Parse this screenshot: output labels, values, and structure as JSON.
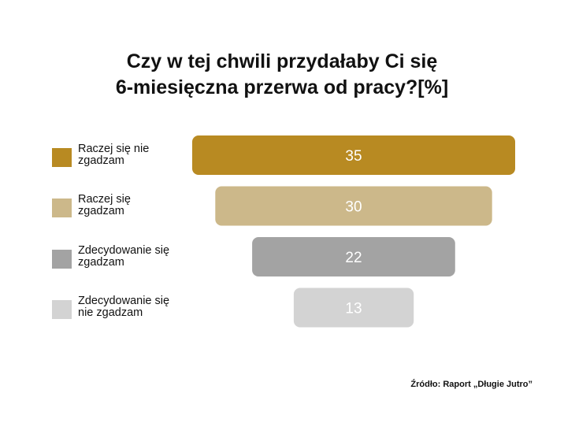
{
  "title_lines": [
    "Czy w tej chwili przydałaby Ci się",
    "6-miesięczna przerwa od pracy?[%]"
  ],
  "source": "Źródło: Raport „Długie Jutro”",
  "chart_data": {
    "type": "bar",
    "orientation": "horizontal",
    "layout": "funnel-centered",
    "title": "Czy w tej chwili przydałaby Ci się 6-miesięczna przerwa od pracy?[%]",
    "categories": [
      "Raczej się nie zgadzam",
      "Raczej się zgadzam",
      "Zdecydowanie się zgadzam",
      "Zdecydowanie się nie zgadzam"
    ],
    "category_lines": [
      [
        "Raczej się nie",
        "zgadzam"
      ],
      [
        "Raczej się",
        "zgadzam"
      ],
      [
        "Zdecydowanie się",
        "zgadzam"
      ],
      [
        "Zdecydowanie się",
        "nie zgadzam"
      ]
    ],
    "values": [
      35,
      30,
      22,
      13
    ],
    "value_labels": [
      "35",
      "30",
      "22",
      "13"
    ],
    "colors": [
      "#b88a22",
      "#ccb88a",
      "#a3a3a3",
      "#d3d3d3"
    ],
    "label_color": "#ffffff",
    "legend_position": "left",
    "grid": false,
    "axes_visible": false
  }
}
